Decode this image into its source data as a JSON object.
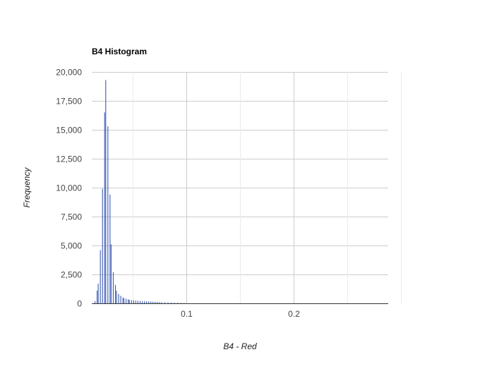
{
  "chart_data": {
    "type": "bar",
    "title": "B4 Histogram",
    "xlabel": "B4 - Red",
    "ylabel": "Frequency",
    "xlim": [
      0.012,
      0.288
    ],
    "ylim": [
      0,
      20000
    ],
    "grid": true,
    "legend": "none",
    "color": "#3b5bb5",
    "y_ticks": [
      "0",
      "2,500",
      "5,000",
      "7,500",
      "10,000",
      "12,500",
      "15,000",
      "17,500",
      "20,000"
    ],
    "y_tick_values": [
      0,
      2500,
      5000,
      7500,
      10000,
      12500,
      15000,
      17500,
      20000
    ],
    "x_ticks": [
      "0.1",
      "0.2"
    ],
    "x_tick_values": [
      0.1,
      0.2
    ],
    "x_minor_values": [
      0.05,
      0.15,
      0.25,
      0.3
    ],
    "x": [
      0.015,
      0.017,
      0.018,
      0.02,
      0.022,
      0.024,
      0.025,
      0.027,
      0.029,
      0.03,
      0.032,
      0.034,
      0.035,
      0.037,
      0.039,
      0.041,
      0.042,
      0.044,
      0.046,
      0.047,
      0.049,
      0.051,
      0.053,
      0.055,
      0.057,
      0.059,
      0.061,
      0.063,
      0.065,
      0.067,
      0.069,
      0.071,
      0.073,
      0.075,
      0.077,
      0.08,
      0.083,
      0.086,
      0.089,
      0.092,
      0.095,
      0.098
    ],
    "values": [
      200,
      1100,
      1700,
      4600,
      9900,
      16500,
      19300,
      15300,
      9400,
      5100,
      2700,
      1600,
      1100,
      800,
      650,
      500,
      450,
      400,
      350,
      300,
      280,
      260,
      240,
      220,
      200,
      190,
      180,
      170,
      160,
      150,
      140,
      130,
      120,
      110,
      100,
      90,
      80,
      70,
      60,
      50,
      40,
      30
    ]
  }
}
